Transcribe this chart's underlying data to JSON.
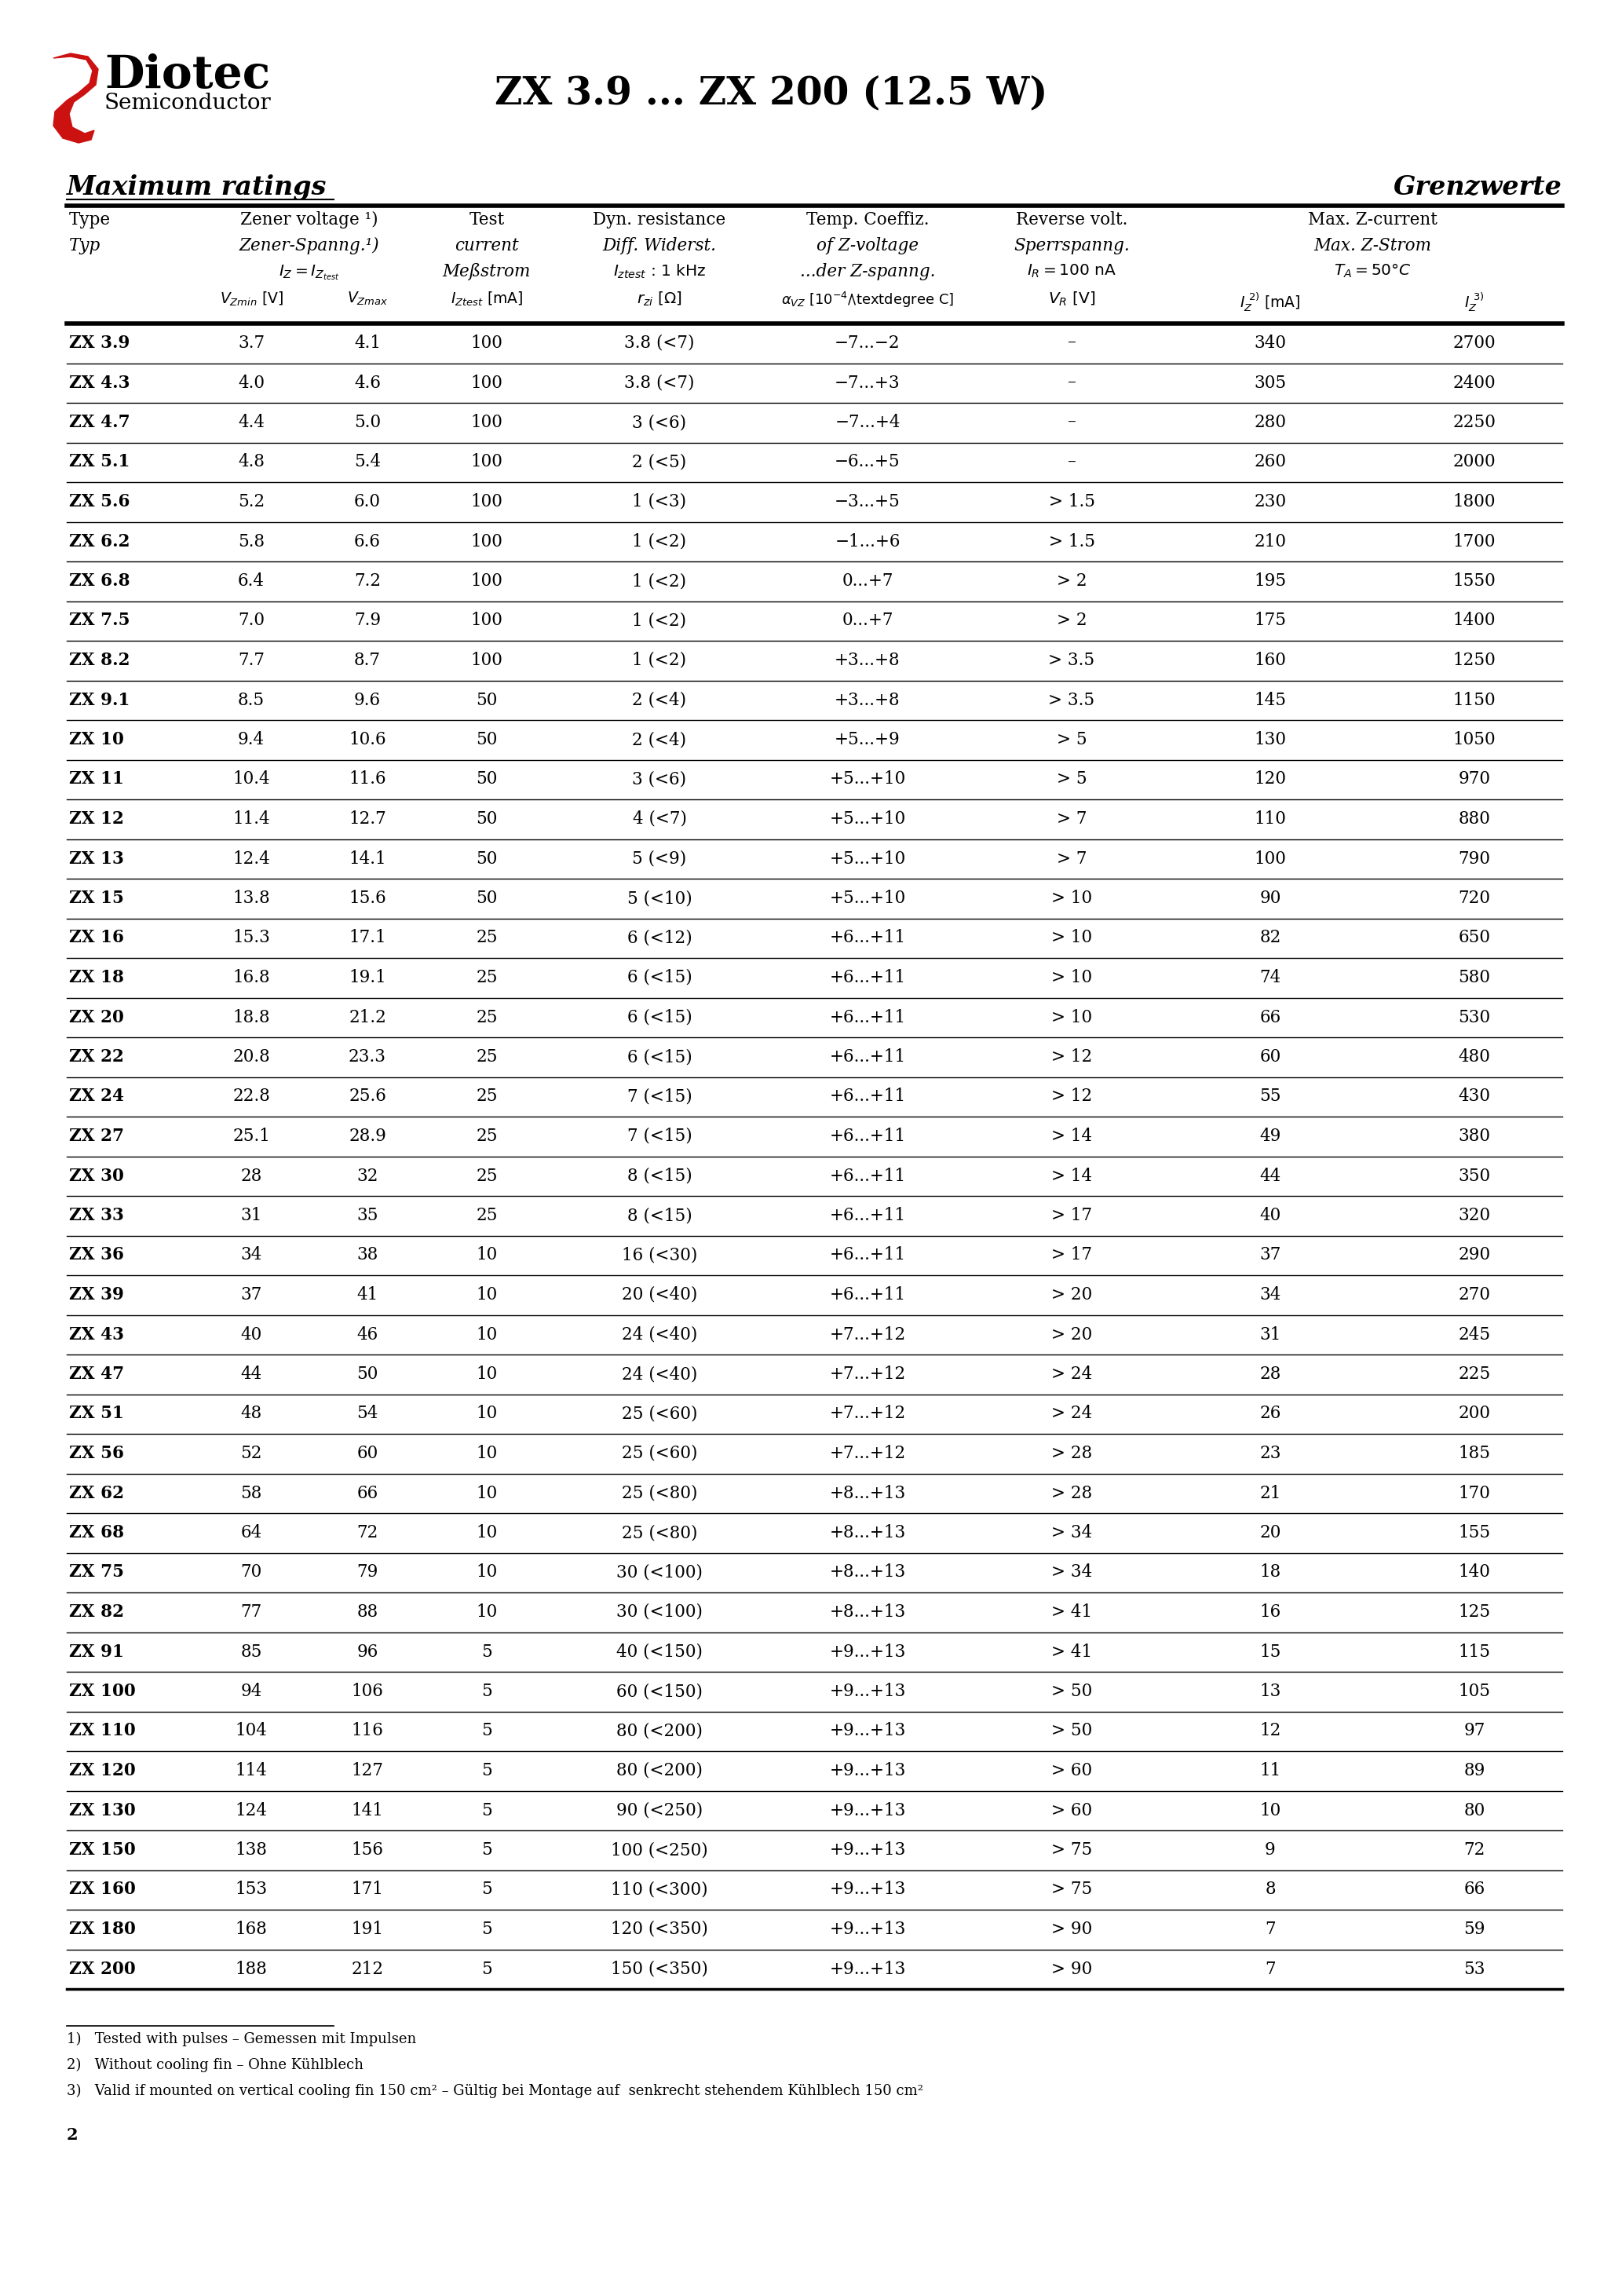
{
  "title": "ZX 3.9 ... ZX 200 (12.5 W)",
  "page_number": "2",
  "section_left": "Maximum ratings",
  "section_right": "Grenzwerte",
  "footnotes": [
    "1)   Tested with pulses – Gemessen mit Impulsen",
    "2)   Without cooling fin – Ohne Kühlblech",
    "3)   Valid if mounted on vertical cooling fin 150 cm² – Gültig bei Montage auf  senkrecht stehendem Kühlblech 150 cm²"
  ],
  "rows": [
    [
      "ZX 3.9",
      "3.7",
      "4.1",
      "100",
      "3.8 (<7)",
      "−7...−2",
      "–",
      "340",
      "2700"
    ],
    [
      "ZX 4.3",
      "4.0",
      "4.6",
      "100",
      "3.8 (<7)",
      "−7...+3",
      "–",
      "305",
      "2400"
    ],
    [
      "ZX 4.7",
      "4.4",
      "5.0",
      "100",
      "3 (<6)",
      "−7...+4",
      "–",
      "280",
      "2250"
    ],
    [
      "ZX 5.1",
      "4.8",
      "5.4",
      "100",
      "2 (<5)",
      "−6...+5",
      "–",
      "260",
      "2000"
    ],
    [
      "ZX 5.6",
      "5.2",
      "6.0",
      "100",
      "1 (<3)",
      "−3...+5",
      "> 1.5",
      "230",
      "1800"
    ],
    [
      "ZX 6.2",
      "5.8",
      "6.6",
      "100",
      "1 (<2)",
      "−1...+6",
      "> 1.5",
      "210",
      "1700"
    ],
    [
      "ZX 6.8",
      "6.4",
      "7.2",
      "100",
      "1 (<2)",
      "0...+7",
      "> 2",
      "195",
      "1550"
    ],
    [
      "ZX 7.5",
      "7.0",
      "7.9",
      "100",
      "1 (<2)",
      "0...+7",
      "> 2",
      "175",
      "1400"
    ],
    [
      "ZX 8.2",
      "7.7",
      "8.7",
      "100",
      "1 (<2)",
      "+3...+8",
      "> 3.5",
      "160",
      "1250"
    ],
    [
      "ZX 9.1",
      "8.5",
      "9.6",
      "50",
      "2 (<4)",
      "+3...+8",
      "> 3.5",
      "145",
      "1150"
    ],
    [
      "ZX 10",
      "9.4",
      "10.6",
      "50",
      "2 (<4)",
      "+5...+9",
      "> 5",
      "130",
      "1050"
    ],
    [
      "ZX 11",
      "10.4",
      "11.6",
      "50",
      "3 (<6)",
      "+5...+10",
      "> 5",
      "120",
      "970"
    ],
    [
      "ZX 12",
      "11.4",
      "12.7",
      "50",
      "4 (<7)",
      "+5...+10",
      "> 7",
      "110",
      "880"
    ],
    [
      "ZX 13",
      "12.4",
      "14.1",
      "50",
      "5 (<9)",
      "+5...+10",
      "> 7",
      "100",
      "790"
    ],
    [
      "ZX 15",
      "13.8",
      "15.6",
      "50",
      "5 (<10)",
      "+5...+10",
      "> 10",
      "90",
      "720"
    ],
    [
      "ZX 16",
      "15.3",
      "17.1",
      "25",
      "6 (<12)",
      "+6...+11",
      "> 10",
      "82",
      "650"
    ],
    [
      "ZX 18",
      "16.8",
      "19.1",
      "25",
      "6 (<15)",
      "+6...+11",
      "> 10",
      "74",
      "580"
    ],
    [
      "ZX 20",
      "18.8",
      "21.2",
      "25",
      "6 (<15)",
      "+6...+11",
      "> 10",
      "66",
      "530"
    ],
    [
      "ZX 22",
      "20.8",
      "23.3",
      "25",
      "6 (<15)",
      "+6...+11",
      "> 12",
      "60",
      "480"
    ],
    [
      "ZX 24",
      "22.8",
      "25.6",
      "25",
      "7 (<15)",
      "+6...+11",
      "> 12",
      "55",
      "430"
    ],
    [
      "ZX 27",
      "25.1",
      "28.9",
      "25",
      "7 (<15)",
      "+6...+11",
      "> 14",
      "49",
      "380"
    ],
    [
      "ZX 30",
      "28",
      "32",
      "25",
      "8 (<15)",
      "+6...+11",
      "> 14",
      "44",
      "350"
    ],
    [
      "ZX 33",
      "31",
      "35",
      "25",
      "8 (<15)",
      "+6...+11",
      "> 17",
      "40",
      "320"
    ],
    [
      "ZX 36",
      "34",
      "38",
      "10",
      "16 (<30)",
      "+6...+11",
      "> 17",
      "37",
      "290"
    ],
    [
      "ZX 39",
      "37",
      "41",
      "10",
      "20 (<40)",
      "+6...+11",
      "> 20",
      "34",
      "270"
    ],
    [
      "ZX 43",
      "40",
      "46",
      "10",
      "24 (<40)",
      "+7...+12",
      "> 20",
      "31",
      "245"
    ],
    [
      "ZX 47",
      "44",
      "50",
      "10",
      "24 (<40)",
      "+7...+12",
      "> 24",
      "28",
      "225"
    ],
    [
      "ZX 51",
      "48",
      "54",
      "10",
      "25 (<60)",
      "+7...+12",
      "> 24",
      "26",
      "200"
    ],
    [
      "ZX 56",
      "52",
      "60",
      "10",
      "25 (<60)",
      "+7...+12",
      "> 28",
      "23",
      "185"
    ],
    [
      "ZX 62",
      "58",
      "66",
      "10",
      "25 (<80)",
      "+8...+13",
      "> 28",
      "21",
      "170"
    ],
    [
      "ZX 68",
      "64",
      "72",
      "10",
      "25 (<80)",
      "+8...+13",
      "> 34",
      "20",
      "155"
    ],
    [
      "ZX 75",
      "70",
      "79",
      "10",
      "30 (<100)",
      "+8...+13",
      "> 34",
      "18",
      "140"
    ],
    [
      "ZX 82",
      "77",
      "88",
      "10",
      "30 (<100)",
      "+8...+13",
      "> 41",
      "16",
      "125"
    ],
    [
      "ZX 91",
      "85",
      "96",
      "5",
      "40 (<150)",
      "+9...+13",
      "> 41",
      "15",
      "115"
    ],
    [
      "ZX 100",
      "94",
      "106",
      "5",
      "60 (<150)",
      "+9...+13",
      "> 50",
      "13",
      "105"
    ],
    [
      "ZX 110",
      "104",
      "116",
      "5",
      "80 (<200)",
      "+9...+13",
      "> 50",
      "12",
      "97"
    ],
    [
      "ZX 120",
      "114",
      "127",
      "5",
      "80 (<200)",
      "+9...+13",
      "> 60",
      "11",
      "89"
    ],
    [
      "ZX 130",
      "124",
      "141",
      "5",
      "90 (<250)",
      "+9...+13",
      "> 60",
      "10",
      "80"
    ],
    [
      "ZX 150",
      "138",
      "156",
      "5",
      "100 (<250)",
      "+9...+13",
      "> 75",
      "9",
      "72"
    ],
    [
      "ZX 160",
      "153",
      "171",
      "5",
      "110 (<300)",
      "+9...+13",
      "> 75",
      "8",
      "66"
    ],
    [
      "ZX 180",
      "168",
      "191",
      "5",
      "120 (<350)",
      "+9...+13",
      "> 90",
      "7",
      "59"
    ],
    [
      "ZX 200",
      "188",
      "212",
      "5",
      "150 (<350)",
      "+9...+13",
      "> 90",
      "7",
      "53"
    ]
  ]
}
